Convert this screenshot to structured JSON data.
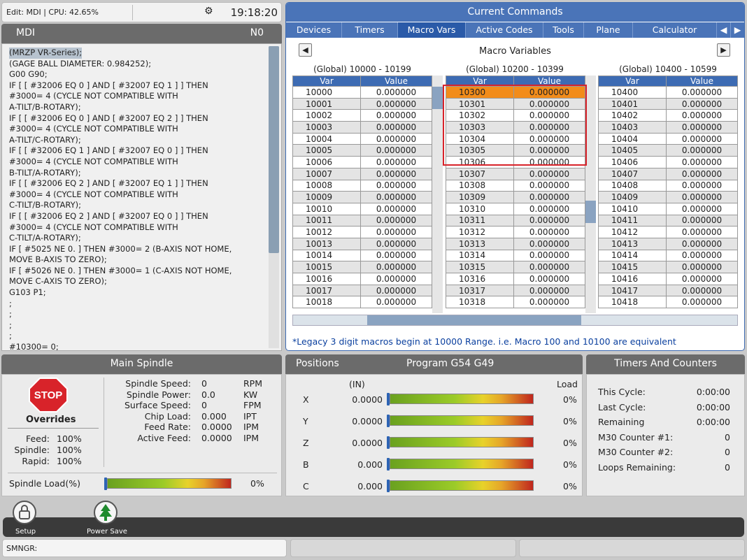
{
  "status": {
    "mode": "Edit: MDI | CPU: 42.65%",
    "clock": "19:18:20"
  },
  "mdi": {
    "title": "MDI",
    "block": "N0",
    "lines": [
      "(MRZP VR-Series);",
      "(GAGE BALL DIAMETER: 0.984252);",
      "G00 G90;",
      "IF [ [ #32006 EQ 0 ] AND [ #32007 EQ 1 ] ] THEN",
      "#3000= 4 (CYCLE NOT COMPATIBLE WITH",
      "A-TILT/B-ROTARY);",
      "IF [ [ #32006 EQ 0 ] AND [ #32007 EQ 2 ] ] THEN",
      "#3000= 4 (CYCLE NOT COMPATIBLE WITH",
      "A-TILT/C-ROTARY);",
      "IF [ [ #32006 EQ 1 ] AND [ #32007 EQ 0 ] ] THEN",
      "#3000= 4 (CYCLE NOT COMPATIBLE WITH",
      "B-TILT/A-ROTARY);",
      "IF [ [ #32006 EQ 2 ] AND [ #32007 EQ 1 ] ] THEN",
      "#3000= 4 (CYCLE NOT COMPATIBLE WITH",
      "C-TILT/B-ROTARY);",
      "IF [ [ #32006 EQ 2 ] AND [ #32007 EQ 0 ] ] THEN",
      "#3000= 4 (CYCLE NOT COMPATIBLE WITH",
      "C-TILT/A-ROTARY);",
      "IF [ #5025 NE 0. ] THEN #3000= 2 (B-AXIS NOT HOME,",
      "MOVE B-AXIS TO ZERO);",
      "IF [ #5026 NE 0. ] THEN #3000= 1 (C-AXIS NOT HOME,",
      "MOVE C-AXIS TO ZERO);",
      "G103 P1;",
      ";",
      ";",
      ";",
      ";",
      "#10300= 0;"
    ]
  },
  "commands": {
    "title": "Current Commands",
    "tabs": [
      "Devices",
      "Timers",
      "Macro Vars",
      "Active Codes",
      "Tools",
      "Plane",
      "Calculator"
    ],
    "active_tab": 2,
    "section_title": "Macro Variables",
    "groups": [
      "(Global) 10000 - 10199",
      "(Global) 10200 - 10399",
      "(Global) 10400 - 10599"
    ],
    "col_var": "Var",
    "col_value": "Value",
    "table1": [
      [
        "10000",
        "0.000000"
      ],
      [
        "10001",
        "0.000000"
      ],
      [
        "10002",
        "0.000000"
      ],
      [
        "10003",
        "0.000000"
      ],
      [
        "10004",
        "0.000000"
      ],
      [
        "10005",
        "0.000000"
      ],
      [
        "10006",
        "0.000000"
      ],
      [
        "10007",
        "0.000000"
      ],
      [
        "10008",
        "0.000000"
      ],
      [
        "10009",
        "0.000000"
      ],
      [
        "10010",
        "0.000000"
      ],
      [
        "10011",
        "0.000000"
      ],
      [
        "10012",
        "0.000000"
      ],
      [
        "10013",
        "0.000000"
      ],
      [
        "10014",
        "0.000000"
      ],
      [
        "10015",
        "0.000000"
      ],
      [
        "10016",
        "0.000000"
      ],
      [
        "10017",
        "0.000000"
      ],
      [
        "10018",
        "0.000000"
      ]
    ],
    "table2": [
      [
        "10300",
        "0.000000"
      ],
      [
        "10301",
        "0.000000"
      ],
      [
        "10302",
        "0.000000"
      ],
      [
        "10303",
        "0.000000"
      ],
      [
        "10304",
        "0.000000"
      ],
      [
        "10305",
        "0.000000"
      ],
      [
        "10306",
        "0.000000"
      ],
      [
        "10307",
        "0.000000"
      ],
      [
        "10308",
        "0.000000"
      ],
      [
        "10309",
        "0.000000"
      ],
      [
        "10310",
        "0.000000"
      ],
      [
        "10311",
        "0.000000"
      ],
      [
        "10312",
        "0.000000"
      ],
      [
        "10313",
        "0.000000"
      ],
      [
        "10314",
        "0.000000"
      ],
      [
        "10315",
        "0.000000"
      ],
      [
        "10316",
        "0.000000"
      ],
      [
        "10317",
        "0.000000"
      ],
      [
        "10318",
        "0.000000"
      ]
    ],
    "table3": [
      [
        "10400",
        "0.000000"
      ],
      [
        "10401",
        "0.000000"
      ],
      [
        "10402",
        "0.000000"
      ],
      [
        "10403",
        "0.000000"
      ],
      [
        "10404",
        "0.000000"
      ],
      [
        "10405",
        "0.000000"
      ],
      [
        "10406",
        "0.000000"
      ],
      [
        "10407",
        "0.000000"
      ],
      [
        "10408",
        "0.000000"
      ],
      [
        "10409",
        "0.000000"
      ],
      [
        "10410",
        "0.000000"
      ],
      [
        "10411",
        "0.000000"
      ],
      [
        "10412",
        "0.000000"
      ],
      [
        "10413",
        "0.000000"
      ],
      [
        "10414",
        "0.000000"
      ],
      [
        "10415",
        "0.000000"
      ],
      [
        "10416",
        "0.000000"
      ],
      [
        "10417",
        "0.000000"
      ],
      [
        "10418",
        "0.000000"
      ]
    ],
    "selected_var": "10300",
    "note": "*Legacy 3 digit macros begin at 10000 Range.  i.e. Macro 100 and 10100 are equivalent"
  },
  "spindle": {
    "title": "Main Spindle",
    "stop_label": "STOP",
    "overrides_title": "Overrides",
    "overrides": [
      {
        "label": "Feed:",
        "value": "100%"
      },
      {
        "label": "Spindle:",
        "value": "100%"
      },
      {
        "label": "Rapid:",
        "value": "100%"
      }
    ],
    "stats": [
      {
        "label": "Spindle Speed:",
        "value": "0",
        "unit": "RPM"
      },
      {
        "label": "Spindle Power:",
        "value": "0.0",
        "unit": "KW"
      },
      {
        "label": "Surface Speed:",
        "value": "0",
        "unit": "FPM"
      },
      {
        "label": "Chip Load:",
        "value": "0.000",
        "unit": "IPT"
      },
      {
        "label": "Feed Rate:",
        "value": "0.0000",
        "unit": "IPM"
      },
      {
        "label": "Active Feed:",
        "value": "0.0000",
        "unit": "IPM"
      }
    ],
    "load_label": "Spindle Load(%)",
    "load_value": "0%"
  },
  "positions": {
    "title": "Positions",
    "program": "Program G54 G49",
    "units": "(IN)",
    "load_header": "Load",
    "axes": [
      {
        "axis": "X",
        "value": "0.0000",
        "load": "0%"
      },
      {
        "axis": "Y",
        "value": "0.0000",
        "load": "0%"
      },
      {
        "axis": "Z",
        "value": "0.0000",
        "load": "0%"
      },
      {
        "axis": "B",
        "value": "0.000",
        "load": "0%"
      },
      {
        "axis": "C",
        "value": "0.000",
        "load": "0%"
      }
    ]
  },
  "timers": {
    "title": "Timers And Counters",
    "rows": [
      {
        "label": "This Cycle:",
        "value": "0:00:00"
      },
      {
        "label": "Last Cycle:",
        "value": "0:00:00"
      },
      {
        "label": "Remaining",
        "value": "0:00:00"
      },
      {
        "label": "M30 Counter #1:",
        "value": "0"
      },
      {
        "label": "M30 Counter #2:",
        "value": "0"
      },
      {
        "label": "Loops Remaining:",
        "value": "0"
      }
    ]
  },
  "dock": {
    "setup": "Setup",
    "power_save": "Power Save"
  },
  "statusbar": {
    "text": "SMNGR:"
  },
  "colors": {
    "accent": "#4a74b8",
    "highlight": "#f28c1a",
    "note": "#0a3f9e",
    "stop": "#d8232a"
  }
}
